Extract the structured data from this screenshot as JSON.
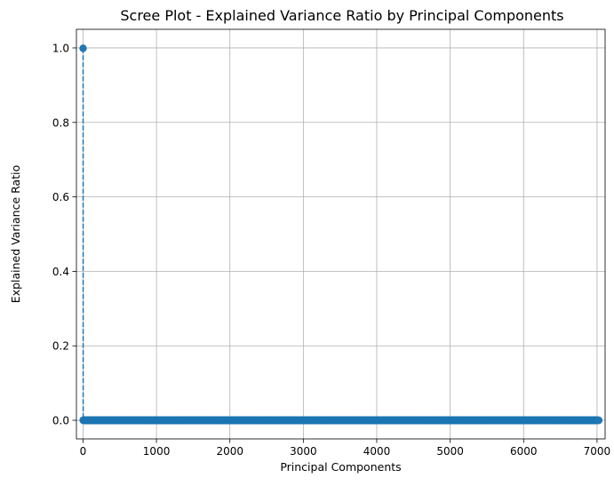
{
  "chart_data": {
    "type": "line",
    "title": "Scree Plot - Explained Variance Ratio by Principal Components",
    "xlabel": "Principal Components",
    "ylabel": "Explained Variance Ratio",
    "xlim": [
      -90,
      7110
    ],
    "ylim": [
      -0.05,
      1.05
    ],
    "xticks": [
      0,
      1000,
      2000,
      3000,
      4000,
      5000,
      6000,
      7000
    ],
    "yticks": [
      0.0,
      0.2,
      0.4,
      0.6,
      0.8,
      1.0
    ],
    "xtick_labels": [
      "0",
      "1000",
      "2000",
      "3000",
      "4000",
      "5000",
      "6000",
      "7000"
    ],
    "ytick_labels": [
      "0.0",
      "0.2",
      "0.4",
      "0.6",
      "0.8",
      "1.0"
    ],
    "grid": true,
    "marker": "circle",
    "linestyle": "dashed",
    "color": "#1f77b4",
    "series": [
      {
        "first_component": 1,
        "last_component": 7023,
        "leading_values": [
          0.999,
          0.0002
        ],
        "remaining_value": 0.0
      }
    ]
  }
}
